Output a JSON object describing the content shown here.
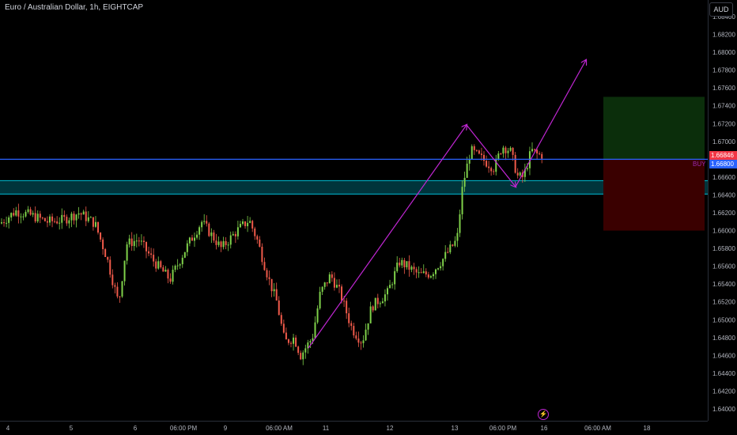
{
  "header": {
    "symbol_title": "Euro / Australian Dollar, 1h, EIGHTCAP",
    "currency": "AUD"
  },
  "price_axis": {
    "labels": [
      "1.68400",
      "1.68200",
      "1.68000",
      "1.67800",
      "1.67600",
      "1.67400",
      "1.67200",
      "1.67000",
      "1.66800",
      "1.66600",
      "1.66400",
      "1.66200",
      "1.66000",
      "1.65800",
      "1.65600",
      "1.65400",
      "1.65200",
      "1.65000",
      "1.64800",
      "1.64600",
      "1.64400",
      "1.64200",
      "1.64000"
    ],
    "current_price": "1.66846",
    "line_price": "1.66800"
  },
  "time_axis": {
    "labels": [
      "4",
      "5",
      "6",
      "06:00 PM",
      "9",
      "06:00 AM",
      "11",
      "12",
      "13",
      "06:00 PM",
      "16",
      "06:00 AM",
      "18"
    ]
  },
  "annotations": {
    "order_label": "BUY",
    "horizontal_line_price": 1.668,
    "zone_top": 1.6656,
    "zone_bottom": 1.6641,
    "position_entry": 1.668,
    "position_target": 1.675,
    "position_stop": 1.66
  },
  "colors": {
    "up": "#26a69a",
    "down": "#ef5350",
    "bull_candle": "#7fd14a",
    "bear_candle": "#f05a4a",
    "line": "#2962ff",
    "zone": "#00bcd4",
    "arrow": "#c026d3",
    "profit": "#0b2e0b",
    "loss": "#3a0000"
  }
}
